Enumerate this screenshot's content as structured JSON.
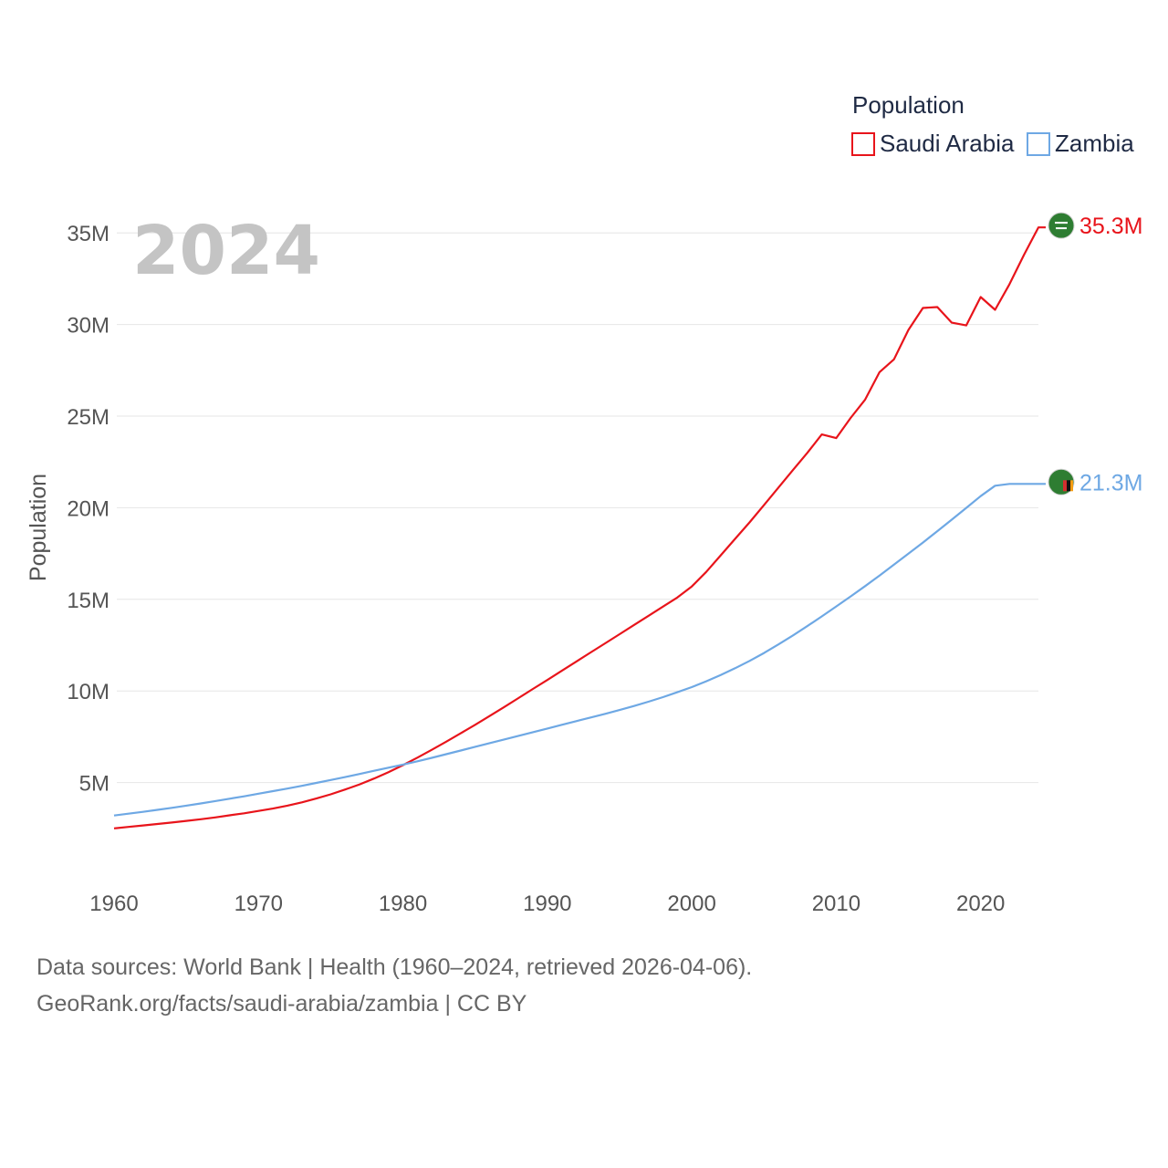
{
  "chart_data": {
    "type": "line",
    "ylabel": "Population",
    "current_year": "2024",
    "legend": {
      "title": "Population",
      "position": "top-right"
    },
    "x": [
      1960,
      1961,
      1962,
      1963,
      1964,
      1965,
      1966,
      1967,
      1968,
      1969,
      1970,
      1971,
      1972,
      1973,
      1974,
      1975,
      1976,
      1977,
      1978,
      1979,
      1980,
      1981,
      1982,
      1983,
      1984,
      1985,
      1986,
      1987,
      1988,
      1989,
      1990,
      1991,
      1992,
      1993,
      1994,
      1995,
      1996,
      1997,
      1998,
      1999,
      2000,
      2001,
      2002,
      2003,
      2004,
      2005,
      2006,
      2007,
      2008,
      2009,
      2010,
      2011,
      2012,
      2013,
      2014,
      2015,
      2016,
      2017,
      2018,
      2019,
      2020,
      2021,
      2022,
      2023,
      2024
    ],
    "xlim": [
      1960,
      2024
    ],
    "ylim": [
      0,
      37500000
    ],
    "x_ticks": [
      "1960",
      "1970",
      "1980",
      "1990",
      "2000",
      "2010",
      "2020"
    ],
    "y_ticks": [
      {
        "value": 5000000,
        "label": "5M"
      },
      {
        "value": 10000000,
        "label": "10M"
      },
      {
        "value": 15000000,
        "label": "15M"
      },
      {
        "value": 20000000,
        "label": "20M"
      },
      {
        "value": 25000000,
        "label": "25M"
      },
      {
        "value": 30000000,
        "label": "30M"
      },
      {
        "value": 35000000,
        "label": "35M"
      }
    ],
    "grid": true,
    "series": [
      {
        "name": "Saudi Arabia",
        "color": "#e8141b",
        "end_label": "35.3M",
        "flag_icon": "saudi-arabia-flag-icon",
        "values": [
          2500000,
          2580000,
          2660000,
          2740000,
          2820000,
          2910000,
          3000000,
          3100000,
          3210000,
          3320000,
          3450000,
          3580000,
          3740000,
          3920000,
          4130000,
          4360000,
          4620000,
          4900000,
          5220000,
          5570000,
          5950000,
          6360000,
          6790000,
          7230000,
          7690000,
          8150000,
          8630000,
          9120000,
          9610000,
          10110000,
          10600000,
          11100000,
          11600000,
          12100000,
          12600000,
          13100000,
          13600000,
          14100000,
          14600000,
          15100000,
          15700000,
          16500000,
          17400000,
          18300000,
          19200000,
          20150000,
          21100000,
          22050000,
          23000000,
          24000000,
          23800000,
          24900000,
          25900000,
          27400000,
          28100000,
          29700000,
          30900000,
          30950000,
          30100000,
          29950000,
          31500000,
          30800000,
          32200000,
          33800000,
          35300000
        ]
      },
      {
        "name": "Zambia",
        "color": "#6ea8e4",
        "end_label": "21.3M",
        "flag_icon": "zambia-flag-icon",
        "values": [
          3200000,
          3300000,
          3400000,
          3510000,
          3620000,
          3740000,
          3860000,
          3990000,
          4120000,
          4250000,
          4390000,
          4530000,
          4670000,
          4820000,
          4980000,
          5140000,
          5300000,
          5470000,
          5640000,
          5810000,
          5980000,
          6160000,
          6350000,
          6550000,
          6750000,
          6950000,
          7150000,
          7350000,
          7550000,
          7750000,
          7950000,
          8150000,
          8350000,
          8550000,
          8750000,
          8960000,
          9180000,
          9410000,
          9660000,
          9930000,
          10210000,
          10530000,
          10870000,
          11240000,
          11640000,
          12070000,
          12540000,
          13030000,
          13540000,
          14070000,
          14610000,
          15160000,
          15720000,
          16300000,
          16890000,
          17490000,
          18100000,
          18720000,
          19350000,
          19990000,
          20630000,
          21200000,
          21300000,
          21300000,
          21300000
        ]
      }
    ]
  },
  "footer": {
    "source_line": "Data sources: World Bank | Health (1960–2024, retrieved 2026-04-06).",
    "credit_line": "GeoRank.org/facts/saudi-arabia/zambia | CC BY"
  }
}
